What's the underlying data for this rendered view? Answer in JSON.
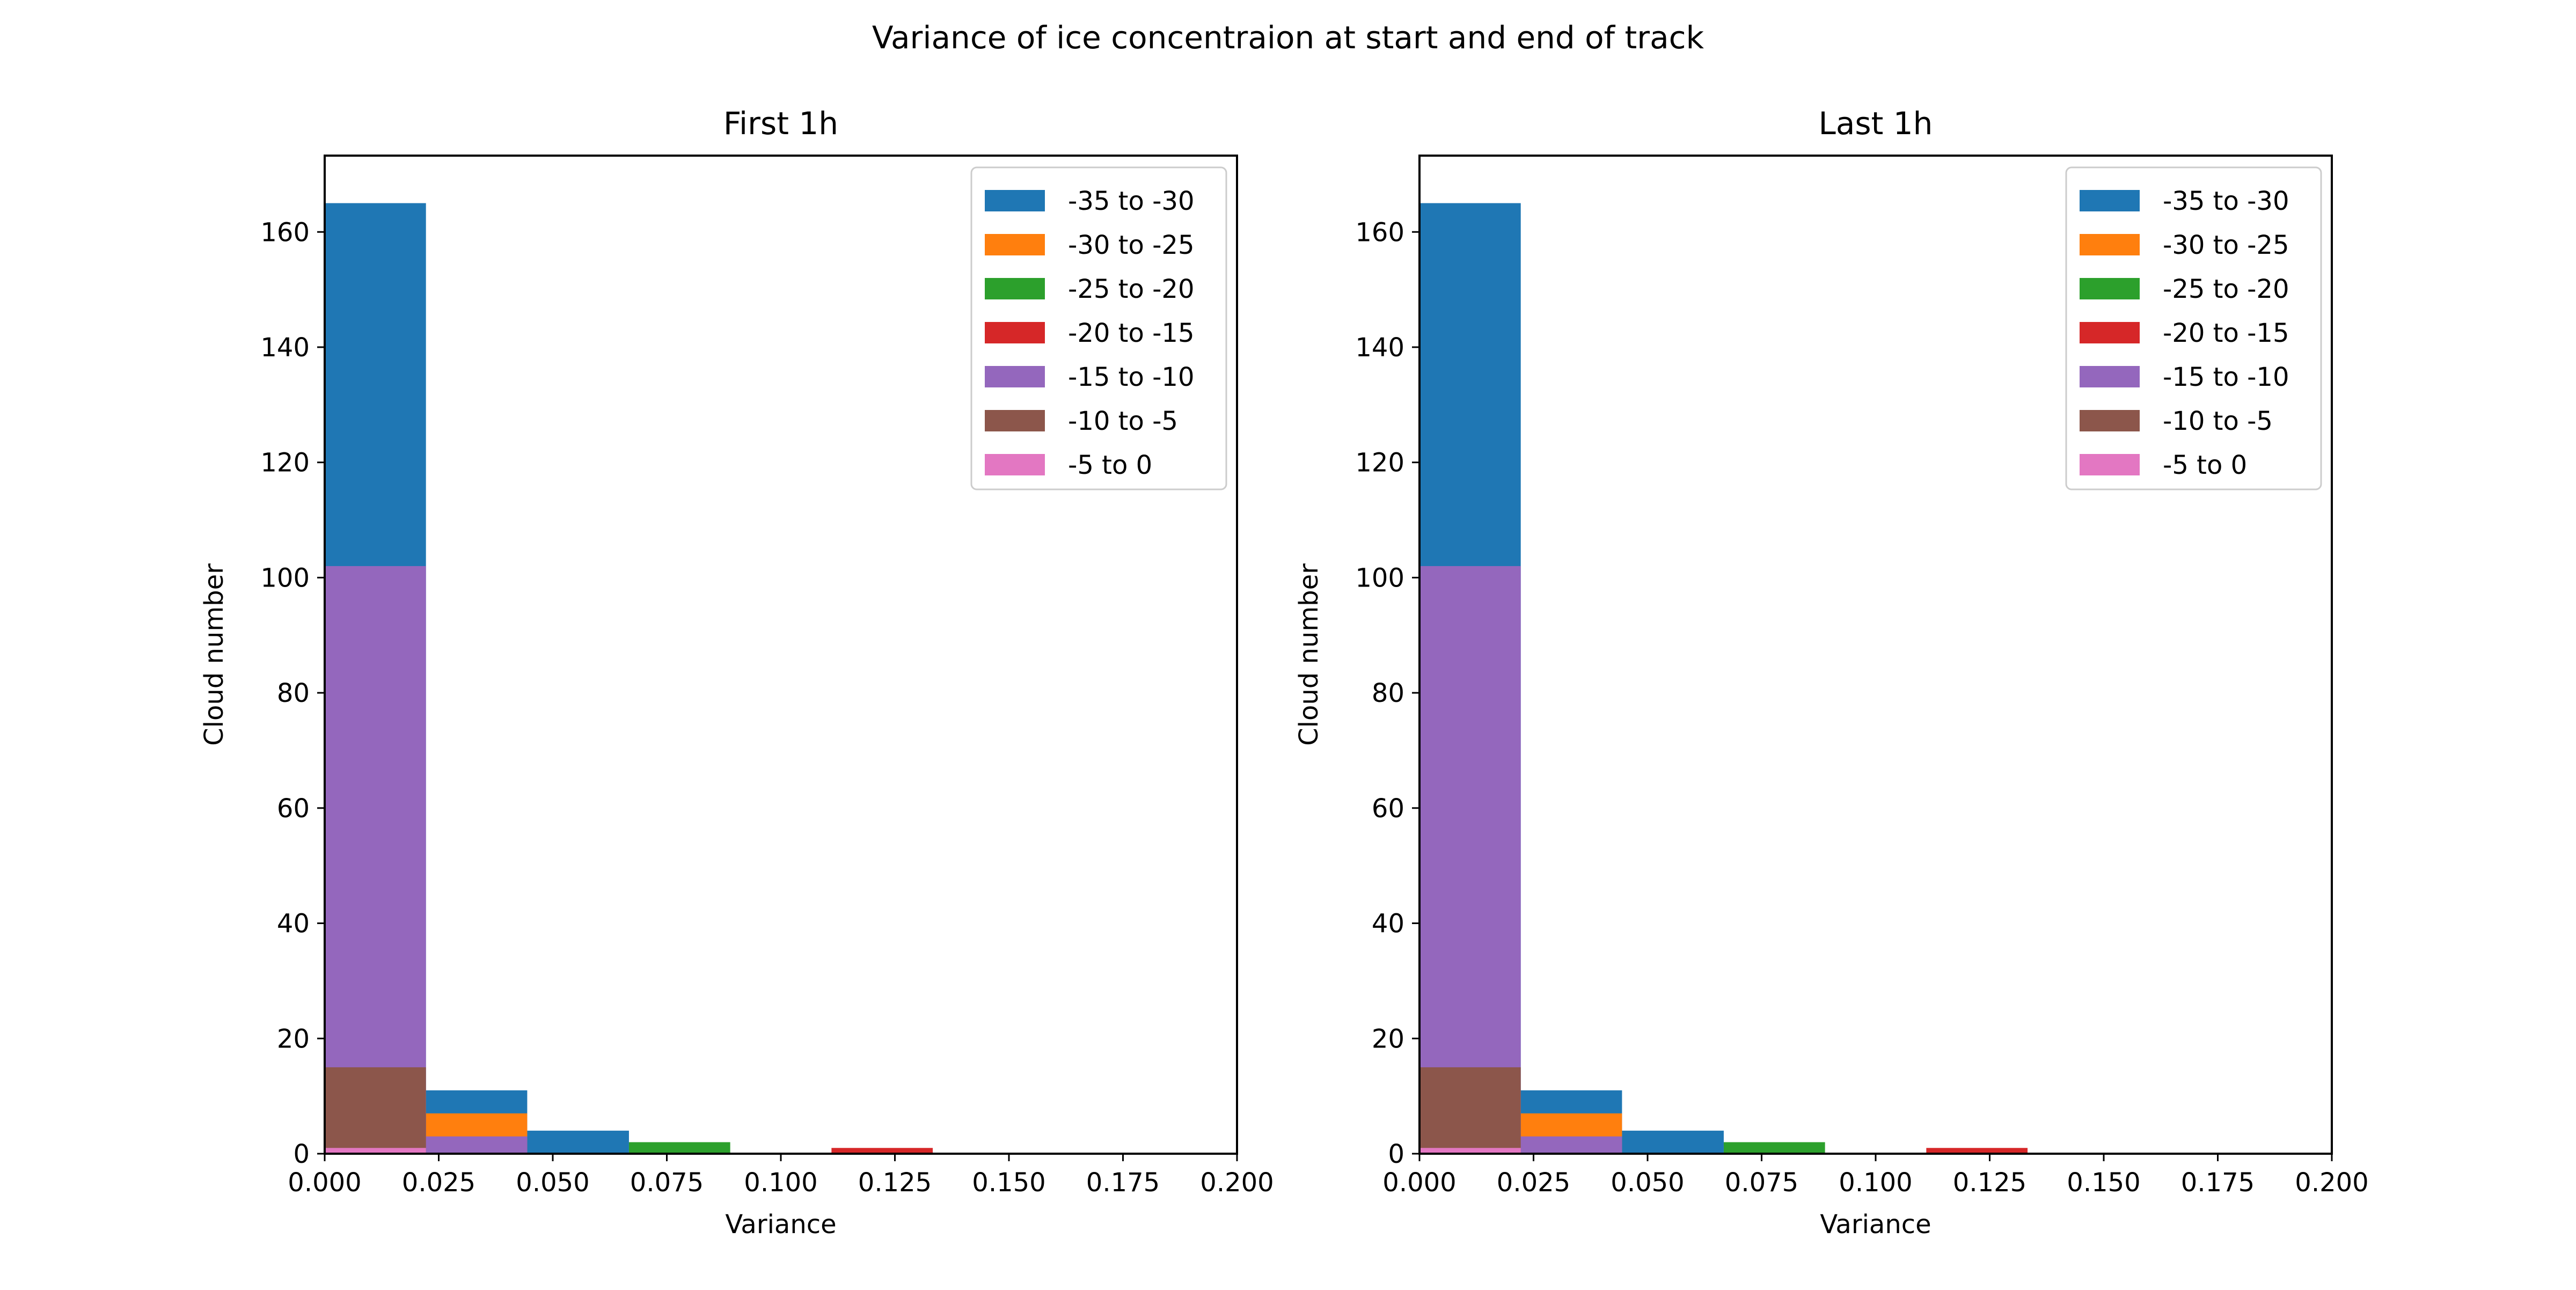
{
  "figure": {
    "suptitle": "Variance of ice concentraion at start and end of track"
  },
  "colors": {
    "-35 to -30": "#1f77b4",
    "-30 to -25": "#ff7f0e",
    "-25 to -20": "#2ca02c",
    "-20 to -15": "#d62728",
    "-15 to -10": "#9467bd",
    "-10 to -5": "#8c564b",
    "-5 to 0": "#e377c2"
  },
  "chart_data": [
    {
      "type": "bar",
      "subtype": "overlaid-histogram",
      "title": "First 1h",
      "xlabel": "Variance",
      "ylabel": "Cloud number",
      "xlim": [
        0,
        0.2
      ],
      "ylim": [
        0,
        173.25
      ],
      "xticks": [
        "0.000",
        "0.025",
        "0.050",
        "0.075",
        "0.100",
        "0.125",
        "0.150",
        "0.175",
        "0.200"
      ],
      "yticks": [
        "0",
        "20",
        "40",
        "60",
        "80",
        "100",
        "120",
        "140",
        "160"
      ],
      "legend": "upper-right",
      "series": [
        {
          "name": "-35 to -30",
          "bins": [
            [
              0,
              0.0222,
              165
            ],
            [
              0.0222,
              0.0444,
              11
            ],
            [
              0.0444,
              0.0667,
              4
            ]
          ]
        },
        {
          "name": "-30 to -25",
          "bins": [
            [
              0.0222,
              0.0444,
              7
            ]
          ]
        },
        {
          "name": "-25 to -20",
          "bins": [
            [
              0.0667,
              0.0889,
              2
            ]
          ]
        },
        {
          "name": "-20 to -15",
          "bins": [
            [
              0.1111,
              0.1333,
              1
            ]
          ]
        },
        {
          "name": "-15 to -10",
          "bins": [
            [
              0,
              0.0222,
              102
            ],
            [
              0.0222,
              0.0444,
              3
            ]
          ]
        },
        {
          "name": "-10 to -5",
          "bins": [
            [
              0,
              0.0222,
              15
            ]
          ]
        },
        {
          "name": "-5 to 0",
          "bins": [
            [
              0,
              0.0222,
              1
            ]
          ]
        }
      ]
    },
    {
      "type": "bar",
      "subtype": "overlaid-histogram",
      "title": "Last 1h",
      "xlabel": "Variance",
      "ylabel": "Cloud number",
      "xlim": [
        0,
        0.2
      ],
      "ylim": [
        0,
        173.25
      ],
      "xticks": [
        "0.000",
        "0.025",
        "0.050",
        "0.075",
        "0.100",
        "0.125",
        "0.150",
        "0.175",
        "0.200"
      ],
      "yticks": [
        "0",
        "20",
        "40",
        "60",
        "80",
        "100",
        "120",
        "140",
        "160"
      ],
      "legend": "upper-right",
      "series": [
        {
          "name": "-35 to -30",
          "bins": [
            [
              0,
              0.0222,
              165
            ],
            [
              0.0222,
              0.0444,
              11
            ],
            [
              0.0444,
              0.0667,
              4
            ]
          ]
        },
        {
          "name": "-30 to -25",
          "bins": [
            [
              0.0222,
              0.0444,
              7
            ]
          ]
        },
        {
          "name": "-25 to -20",
          "bins": [
            [
              0.0667,
              0.0889,
              2
            ]
          ]
        },
        {
          "name": "-20 to -15",
          "bins": [
            [
              0.1111,
              0.1333,
              1
            ]
          ]
        },
        {
          "name": "-15 to -10",
          "bins": [
            [
              0,
              0.0222,
              102
            ],
            [
              0.0222,
              0.0444,
              3
            ]
          ]
        },
        {
          "name": "-10 to -5",
          "bins": [
            [
              0,
              0.0222,
              15
            ]
          ]
        },
        {
          "name": "-5 to 0",
          "bins": [
            [
              0,
              0.0222,
              1
            ]
          ]
        }
      ]
    }
  ]
}
